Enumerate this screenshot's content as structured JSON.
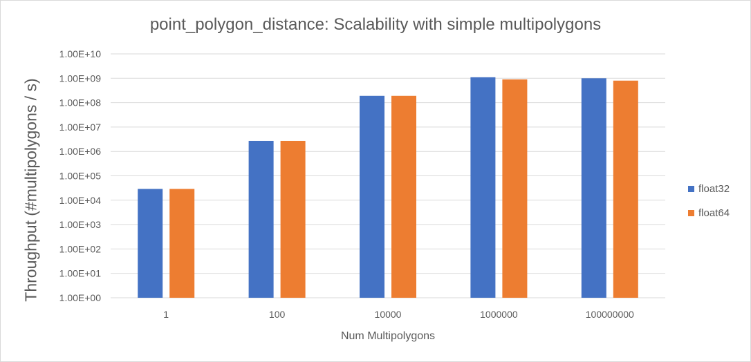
{
  "chart_data": {
    "type": "bar",
    "title": "point_polygon_distance: Scalability with simple multipolygons",
    "xlabel": "Num Multipolygons",
    "ylabel": "Throughput (#multipolygons / s)",
    "yscale": "log",
    "ylim": [
      1,
      10000000000
    ],
    "yticks": [
      "1.00E+00",
      "1.00E+01",
      "1.00E+02",
      "1.00E+03",
      "1.00E+04",
      "1.00E+05",
      "1.00E+06",
      "1.00E+07",
      "1.00E+08",
      "1.00E+09",
      "1.00E+10"
    ],
    "categories": [
      "1",
      "100",
      "10000",
      "1000000",
      "100000000"
    ],
    "series": [
      {
        "name": "float32",
        "color": "#4472c4",
        "values": [
          29000,
          2700000,
          190000000,
          1100000000,
          1000000000
        ]
      },
      {
        "name": "float64",
        "color": "#ed7d31",
        "values": [
          29000,
          2700000,
          190000000,
          900000000,
          800000000
        ]
      }
    ],
    "grid": true,
    "legend_position": "right"
  }
}
